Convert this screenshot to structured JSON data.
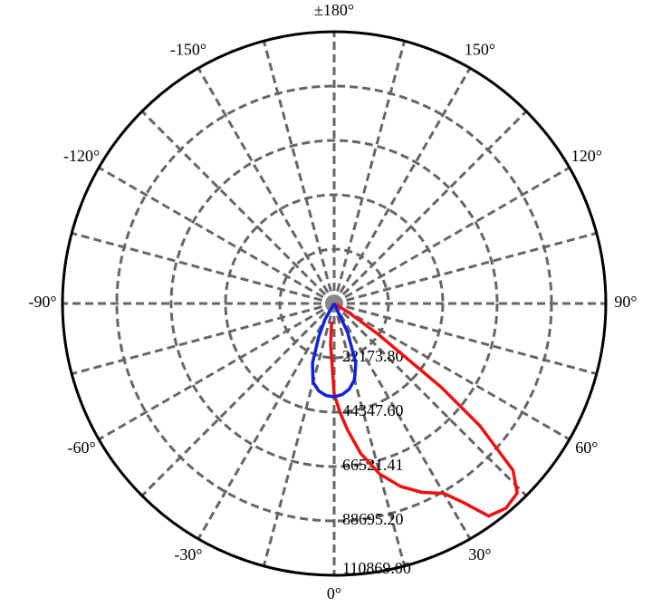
{
  "chart_data": {
    "type": "polar",
    "theta_ticks": [
      {
        "value": 0,
        "label": "0°"
      },
      {
        "value": 30,
        "label": "30°"
      },
      {
        "value": 60,
        "label": "60°"
      },
      {
        "value": 90,
        "label": "90°"
      },
      {
        "value": 120,
        "label": "120°"
      },
      {
        "value": 150,
        "label": "150°"
      },
      {
        "value": 180,
        "label": "±180°"
      },
      {
        "value": -150,
        "label": "-150°"
      },
      {
        "value": -120,
        "label": "-120°"
      },
      {
        "value": -90,
        "label": "-90°"
      },
      {
        "value": -60,
        "label": "-60°"
      },
      {
        "value": -30,
        "label": "-30°"
      }
    ],
    "rlim": [
      0,
      110869
    ],
    "rticks": [
      {
        "value": 22173.8,
        "label": "22173.80"
      },
      {
        "value": 44347.6,
        "label": "44347.60"
      },
      {
        "value": 66521.41,
        "label": "66521.41"
      },
      {
        "value": 88695.2,
        "label": "88695.20"
      },
      {
        "value": 110869,
        "label": "110869.00"
      }
    ],
    "grid": true,
    "series": [
      {
        "color": "#ee1111",
        "theta": [
          -8,
          -5,
          0,
          3,
          6,
          10,
          15,
          20,
          25,
          30,
          33,
          36,
          40,
          44,
          47,
          50,
          52,
          55,
          58,
          60
        ],
        "values": [
          7391,
          16630,
          36956,
          44348,
          51739,
          62087,
          72065,
          79456,
          85000,
          89435,
          96826,
          107173,
          109021,
          107543,
          99782,
          77608,
          55435,
          22174,
          7391,
          0
        ]
      },
      {
        "color": "#1122dd",
        "theta": [
          -35,
          -30,
          -25,
          -20,
          -15,
          -10,
          -5,
          0,
          5,
          10,
          15,
          20,
          25,
          30
        ],
        "values": [
          0,
          7391,
          14782,
          25869,
          33260,
          36217,
          37695,
          38065,
          37326,
          35478,
          32152,
          25869,
          12935,
          0
        ]
      }
    ]
  }
}
